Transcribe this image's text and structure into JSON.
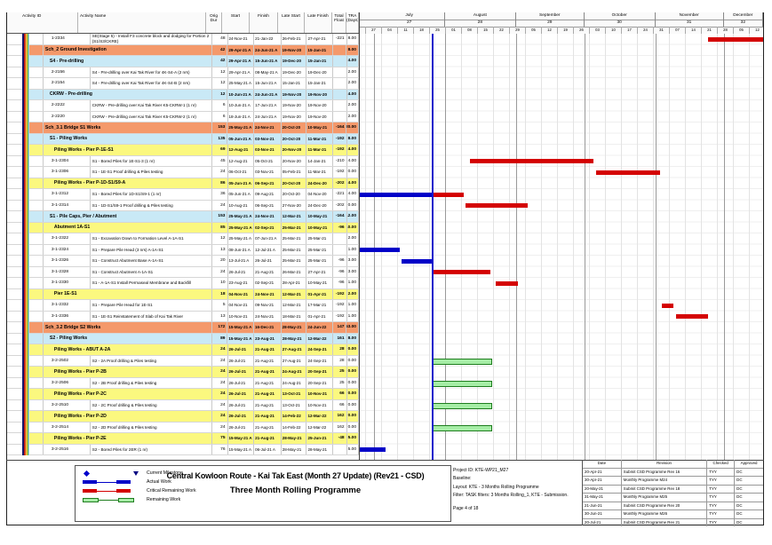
{
  "colors": {
    "band_level1": "#F4996B",
    "band_level2": "#C9E9F6",
    "band_level3": "#FBF87F",
    "actual_bar": "#0000C8",
    "critical_bar": "#D40000",
    "remaining_fill": "#A6EDA6",
    "remaining_border": "#1E7D1E",
    "data_date_line": "#1A1ACC"
  },
  "table": {
    "columns": [
      "Activity ID",
      "Activity Name",
      "Orig Dur",
      "Start",
      "Finish",
      "Late Start",
      "Late Finish",
      "Total Float",
      "TRA (Days)"
    ]
  },
  "timescale": {
    "data_date": "26-Jul-21",
    "months": [
      {
        "label": "July",
        "number": "27",
        "start": "01-Jul-21",
        "end": "01-Aug-21"
      },
      {
        "label": "August",
        "number": "28",
        "start": "01-Aug-21",
        "end": "01-Sep-21"
      },
      {
        "label": "September",
        "number": "29",
        "start": "01-Sep-21",
        "end": "01-Oct-21"
      },
      {
        "label": "October",
        "number": "30",
        "start": "01-Oct-21",
        "end": "01-Nov-21"
      },
      {
        "label": "November",
        "number": "31",
        "start": "01-Nov-21",
        "end": "01-Dec-21"
      },
      {
        "label": "December",
        "number": "32",
        "start": "01-Dec-21",
        "end": "20-Dec-21"
      }
    ],
    "weeks": [
      {
        "label": "27",
        "date": "27-Jun-21"
      },
      {
        "label": "04",
        "date": "04-Jul-21"
      },
      {
        "label": "11",
        "date": "11-Jul-21"
      },
      {
        "label": "18",
        "date": "18-Jul-21"
      },
      {
        "label": "25",
        "date": "25-Jul-21"
      },
      {
        "label": "01",
        "date": "01-Aug-21"
      },
      {
        "label": "08",
        "date": "08-Aug-21"
      },
      {
        "label": "15",
        "date": "15-Aug-21"
      },
      {
        "label": "22",
        "date": "22-Aug-21"
      },
      {
        "label": "29",
        "date": "29-Aug-21"
      },
      {
        "label": "05",
        "date": "05-Sep-21"
      },
      {
        "label": "12",
        "date": "12-Sep-21"
      },
      {
        "label": "19",
        "date": "19-Sep-21"
      },
      {
        "label": "26",
        "date": "26-Sep-21"
      },
      {
        "label": "03",
        "date": "03-Oct-21"
      },
      {
        "label": "10",
        "date": "10-Oct-21"
      },
      {
        "label": "17",
        "date": "17-Oct-21"
      },
      {
        "label": "24",
        "date": "24-Oct-21"
      },
      {
        "label": "31",
        "date": "31-Oct-21"
      },
      {
        "label": "07",
        "date": "07-Nov-21"
      },
      {
        "label": "14",
        "date": "14-Nov-21"
      },
      {
        "label": "21",
        "date": "21-Nov-21"
      },
      {
        "label": "28",
        "date": "28-Nov-21"
      },
      {
        "label": "05",
        "date": "05-Dec-21"
      },
      {
        "label": "12",
        "date": "12-Dec-21"
      }
    ]
  },
  "rows": [
    {
      "level": "t",
      "id": "1-2334",
      "name": "SE(Stage 5) - Install F3 concrete block and dodging for Portion 2 (S1/S3/CKRE)",
      "od": "48",
      "start": "24-Nov-21",
      "finish": "21-Jan-22",
      "ls": "26-Feb-21",
      "lf": "27-Apr-21",
      "tf": "-221",
      "tra": "8.00",
      "bars": [
        {
          "k": "c",
          "s": "24-Nov-21",
          "e": "20-Dec-21"
        }
      ]
    },
    {
      "level": "b1",
      "id": "",
      "name": "Sch_2 Ground Investigation",
      "od": "42",
      "start": "29-Apr-21 A",
      "finish": "24-Jun-21 A",
      "ls": "19-Nov-20",
      "lf": "15-Jan-21",
      "tf": "",
      "tra": "8.00",
      "bars": []
    },
    {
      "level": "b2",
      "id": "",
      "name": "S4 - Pre-drilling",
      "od": "42",
      "start": "29-Apr-21 A",
      "finish": "15-Jun-21 A",
      "ls": "19-Dec-20",
      "lf": "15-Jan-21",
      "tf": "",
      "tra": "4.00",
      "bars": []
    },
    {
      "level": "t",
      "id": "2-2156",
      "name": "S4 - Pre-drilling over Kai Tak River for 4K-S4-A (2 nrs)",
      "od": "12",
      "start": "29-Apr-21 A",
      "finish": "08-May-21 A",
      "ls": "19-Dec-20",
      "lf": "19-Dec-20",
      "tf": "",
      "tra": "2.00",
      "bars": []
    },
    {
      "level": "t",
      "id": "2-2154",
      "name": "S4 - Pre-drilling over Kai Tak River for 4K-S4-B (2 nrs)",
      "od": "12",
      "start": "25-May-21 A",
      "finish": "15-Jun-21 A",
      "ls": "15-Jan-21",
      "lf": "15-Jan-21",
      "tf": "",
      "tra": "2.00",
      "bars": []
    },
    {
      "level": "b2",
      "id": "",
      "name": "CKRW - Pre-drilling",
      "od": "12",
      "start": "10-Jun-21 A",
      "finish": "24-Jun-21 A",
      "ls": "19-Nov-20",
      "lf": "19-Nov-20",
      "tf": "",
      "tra": "4.00",
      "bars": []
    },
    {
      "level": "t",
      "id": "2-2222",
      "name": "CKRW - Pre-drilling over Kai Tak River K5-CKRW-1 (1 nr)",
      "od": "6",
      "start": "10-Jun-21 A",
      "finish": "17-Jun-21 A",
      "ls": "19-Nov-20",
      "lf": "19-Nov-20",
      "tf": "",
      "tra": "2.00",
      "bars": []
    },
    {
      "level": "t",
      "id": "2-2220",
      "name": "CKRW - Pre-drilling over Kai Tak River K5-CKRW-2 (1 nr)",
      "od": "6",
      "start": "18-Jun-21 A",
      "finish": "24-Jun-21 A",
      "ls": "19-Nov-20",
      "lf": "19-Nov-20",
      "tf": "",
      "tra": "2.00",
      "bars": []
    },
    {
      "level": "b1",
      "id": "",
      "name": "Sch_3.1 Bridge S1 Works",
      "od": "153",
      "start": "25-May-21 A",
      "finish": "24-Nov-21",
      "ls": "20-Oct-20",
      "lf": "10-May-21",
      "tf": "-164",
      "tra": "20.00",
      "bars": []
    },
    {
      "level": "b2",
      "id": "",
      "name": "S1 - Piling Works",
      "od": "135",
      "start": "05-Jun-21 A",
      "finish": "03-Nov-21",
      "ls": "20-Oct-20",
      "lf": "11-Mar-21",
      "tf": "-192",
      "tra": "8.00",
      "bars": []
    },
    {
      "level": "b3",
      "id": "",
      "name": "Piling Works - Pier P-1E-S1",
      "od": "69",
      "start": "12-Aug-21",
      "finish": "03-Nov-21",
      "ls": "20-Nov-20",
      "lf": "11-Mar-21",
      "tf": "-192",
      "tra": "4.00",
      "bars": []
    },
    {
      "level": "t",
      "id": "3-1-2304",
      "name": "S1 - Bored Piles for 1E-S1-3 (1 nr)",
      "od": "45",
      "start": "12-Aug-21",
      "finish": "05-Oct-21",
      "ls": "20-Nov-20",
      "lf": "14-Jan-21",
      "tf": "-210",
      "tra": "4.00",
      "bars": [
        {
          "k": "c",
          "s": "12-Aug-21",
          "e": "05-Oct-21"
        }
      ]
    },
    {
      "level": "t",
      "id": "3-1-2306",
      "name": "S1 - 1E-S1 Proof drilling & Piles testing",
      "od": "24",
      "start": "06-Oct-21",
      "finish": "03-Nov-21",
      "ls": "05-Feb-21",
      "lf": "11-Mar-21",
      "tf": "-192",
      "tra": "0.00",
      "bars": [
        {
          "k": "c",
          "s": "06-Oct-21",
          "e": "03-Nov-21"
        }
      ]
    },
    {
      "level": "b3",
      "id": "",
      "name": "Piling Works - Pier P-1D-S1/S9-A",
      "od": "86",
      "start": "05-Jun-21 A",
      "finish": "06-Sep-21",
      "ls": "20-Oct-20",
      "lf": "24-Dec-20",
      "tf": "-202",
      "tra": "4.00",
      "bars": []
    },
    {
      "level": "t",
      "id": "3-1-2312",
      "name": "S1 - Bored Piles for 1D-S1/S9-1 (1 nr)",
      "od": "36",
      "start": "05-Jun-21 A",
      "finish": "09-Aug-21",
      "ls": "20-Oct-20",
      "lf": "04-Nov-20",
      "tf": "-221",
      "tra": "4.00",
      "bars": [
        {
          "k": "a",
          "s": "05-Jun-21",
          "e": "26-Jul-21"
        },
        {
          "k": "c",
          "s": "26-Jul-21",
          "e": "09-Aug-21"
        }
      ]
    },
    {
      "level": "t",
      "id": "3-1-2314",
      "name": "S1 - 1D-S1/S9-1 Proof drilling & Piles testing",
      "od": "24",
      "start": "10-Aug-21",
      "finish": "06-Sep-21",
      "ls": "27-Nov-20",
      "lf": "24-Dec-20",
      "tf": "-202",
      "tra": "0.00",
      "bars": [
        {
          "k": "c",
          "s": "10-Aug-21",
          "e": "06-Sep-21"
        }
      ]
    },
    {
      "level": "b2",
      "id": "",
      "name": "S1 - Pile Caps, Pier / Abutment",
      "od": "153",
      "start": "25-May-21 A",
      "finish": "24-Nov-21",
      "ls": "12-Mar-21",
      "lf": "10-May-21",
      "tf": "-164",
      "tra": "12.00",
      "bars": []
    },
    {
      "level": "b3",
      "id": "",
      "name": "Abutment 1A-S1",
      "od": "85",
      "start": "25-May-21 A",
      "finish": "02-Sep-21",
      "ls": "25-Mar-21",
      "lf": "10-May-21",
      "tf": "-96",
      "tra": "10.00",
      "bars": []
    },
    {
      "level": "t",
      "id": "3-1-2322",
      "name": "S1 - Excavation Down to Formation Level A-1A-S1",
      "od": "12",
      "start": "25-May-21 A",
      "finish": "07-Jun-21 A",
      "ls": "25-Mar-21",
      "lf": "25-Mar-21",
      "tf": "",
      "tra": "2.00",
      "bars": []
    },
    {
      "level": "t",
      "id": "3-1-2324",
      "name": "S1 - Prepare Pile Head (3 nrs) A-1A-S1",
      "od": "13",
      "start": "08-Jun-21 A",
      "finish": "12-Jul-21 A",
      "ls": "25-Mar-21",
      "lf": "25-Mar-21",
      "tf": "",
      "tra": "1.00",
      "bars": [
        {
          "k": "a",
          "s": "08-Jun-21",
          "e": "12-Jul-21"
        }
      ]
    },
    {
      "level": "t",
      "id": "3-1-2326",
      "name": "S1 - Construct Abutment Base A-1A-S1",
      "od": "20",
      "start": "13-Jul-21 A",
      "finish": "26-Jul-21",
      "ls": "25-Mar-21",
      "lf": "25-Mar-21",
      "tf": "-96",
      "tra": "3.00",
      "bars": [
        {
          "k": "a",
          "s": "13-Jul-21",
          "e": "26-Jul-21"
        },
        {
          "k": "c",
          "s": "26-Jul-21",
          "e": "27-Jul-21"
        }
      ]
    },
    {
      "level": "t",
      "id": "3-1-2328",
      "name": "S1 - Construct Abutment A-1A-S1",
      "od": "24",
      "start": "26-Jul-21",
      "finish": "21-Aug-21",
      "ls": "26-Mar-21",
      "lf": "27-Apr-21",
      "tf": "-96",
      "tra": "3.00",
      "bars": [
        {
          "k": "c",
          "s": "26-Jul-21",
          "e": "21-Aug-21"
        }
      ]
    },
    {
      "level": "t",
      "id": "3-1-2330",
      "name": "S1 - A-1A-S1 Install Permaseal Membrane and Backfill",
      "od": "10",
      "start": "23-Aug-21",
      "finish": "02-Sep-21",
      "ls": "28-Apr-21",
      "lf": "10-May-21",
      "tf": "-96",
      "tra": "1.00",
      "bars": [
        {
          "k": "c",
          "s": "23-Aug-21",
          "e": "02-Sep-21"
        }
      ]
    },
    {
      "level": "b3",
      "id": "",
      "name": "Pier 1E-S1",
      "od": "18",
      "start": "04-Nov-21",
      "finish": "24-Nov-21",
      "ls": "12-Mar-21",
      "lf": "01-Apr-21",
      "tf": "-192",
      "tra": "2.00",
      "bars": []
    },
    {
      "level": "t",
      "id": "3-1-2332",
      "name": "S1 - Prepare Pile Head for 1E-S1",
      "od": "5",
      "start": "04-Nov-21",
      "finish": "09-Nov-21",
      "ls": "12-Mar-21",
      "lf": "17-Mar-21",
      "tf": "-192",
      "tra": "1.00",
      "bars": [
        {
          "k": "c",
          "s": "04-Nov-21",
          "e": "09-Nov-21"
        }
      ]
    },
    {
      "level": "t",
      "id": "3-1-2336",
      "name": "S1 - 1E-S1 Reinstatement of Slab of Kai Tak River",
      "od": "13",
      "start": "10-Nov-21",
      "finish": "24-Nov-21",
      "ls": "18-Mar-21",
      "lf": "01-Apr-21",
      "tf": "-192",
      "tra": "1.00",
      "bars": [
        {
          "k": "c",
          "s": "10-Nov-21",
          "e": "24-Nov-21"
        }
      ]
    },
    {
      "level": "b1",
      "id": "",
      "name": "Sch_3.2 Bridge S2 Works",
      "od": "172",
      "start": "15-May-21 A",
      "finish": "16-Dec-21",
      "ls": "28-May-21",
      "lf": "24-Jun-22",
      "tf": "147",
      "tra": "53.00",
      "bars": []
    },
    {
      "level": "b2",
      "id": "",
      "name": "S2 - Piling Works",
      "od": "89",
      "start": "15-May-21 A",
      "finish": "23-Aug-21",
      "ls": "28-May-21",
      "lf": "12-Mar-22",
      "tf": "161",
      "tra": "8.00",
      "bars": []
    },
    {
      "level": "b3",
      "id": "",
      "name": "Piling Works - ABUT A-2A",
      "od": "24",
      "start": "26-Jul-21",
      "finish": "21-Aug-21",
      "ls": "27-Aug-21",
      "lf": "24-Sep-21",
      "tf": "28",
      "tra": "0.00",
      "bars": []
    },
    {
      "level": "t",
      "id": "3-2-2502",
      "name": "S2 - 2A Proof drilling & Piles testing",
      "od": "24",
      "start": "26-Jul-21",
      "finish": "21-Aug-21",
      "ls": "27-Aug-21",
      "lf": "24-Sep-21",
      "tf": "28",
      "tra": "0.00",
      "bars": [
        {
          "k": "r",
          "s": "26-Jul-21",
          "e": "21-Aug-21"
        }
      ]
    },
    {
      "level": "b3",
      "id": "",
      "name": "Piling Works - Pier P-2B",
      "od": "24",
      "start": "26-Jul-21",
      "finish": "21-Aug-21",
      "ls": "24-Aug-21",
      "lf": "20-Sep-21",
      "tf": "25",
      "tra": "0.00",
      "bars": []
    },
    {
      "level": "t",
      "id": "3-2-2506",
      "name": "S2 - 2B Proof drilling & Piles testing",
      "od": "24",
      "start": "26-Jul-21",
      "finish": "21-Aug-21",
      "ls": "24-Aug-21",
      "lf": "20-Sep-21",
      "tf": "25",
      "tra": "0.00",
      "bars": [
        {
          "k": "r",
          "s": "26-Jul-21",
          "e": "21-Aug-21"
        }
      ]
    },
    {
      "level": "b3",
      "id": "",
      "name": "Piling Works - Pier P-2C",
      "od": "24",
      "start": "26-Jul-21",
      "finish": "21-Aug-21",
      "ls": "13-Oct-21",
      "lf": "10-Nov-21",
      "tf": "66",
      "tra": "0.00",
      "bars": []
    },
    {
      "level": "t",
      "id": "3-2-2510",
      "name": "S2 - 2C Proof drilling & Piles testing",
      "od": "24",
      "start": "26-Jul-21",
      "finish": "21-Aug-21",
      "ls": "13-Oct-21",
      "lf": "10-Nov-21",
      "tf": "66",
      "tra": "0.00",
      "bars": [
        {
          "k": "r",
          "s": "26-Jul-21",
          "e": "21-Aug-21"
        }
      ]
    },
    {
      "level": "b3",
      "id": "",
      "name": "Piling Works - Pier P-2D",
      "od": "24",
      "start": "26-Jul-21",
      "finish": "21-Aug-21",
      "ls": "14-Feb-22",
      "lf": "12-Mar-22",
      "tf": "162",
      "tra": "0.00",
      "bars": []
    },
    {
      "level": "t",
      "id": "3-2-2514",
      "name": "S2 - 2D Proof drilling & Piles testing",
      "od": "24",
      "start": "26-Jul-21",
      "finish": "21-Aug-21",
      "ls": "14-Feb-22",
      "lf": "12-Mar-22",
      "tf": "162",
      "tra": "0.00",
      "bars": [
        {
          "k": "r",
          "s": "26-Jul-21",
          "e": "21-Aug-21"
        }
      ]
    },
    {
      "level": "b3",
      "id": "",
      "name": "Piling Works - Pier P-2E",
      "od": "75",
      "start": "15-May-21 A",
      "finish": "21-Aug-21",
      "ls": "28-May-21",
      "lf": "25-Jun-21",
      "tf": "-48",
      "tra": "5.00",
      "bars": []
    },
    {
      "level": "t",
      "id": "3-2-2516",
      "name": "S2 - Bored Piles for 2ER (1 nr)",
      "od": "76",
      "start": "15-May-21 A",
      "finish": "06-Jul-21 A",
      "ls": "28-May-21",
      "lf": "28-May-21",
      "tf": "",
      "tra": "5.00",
      "bars": [
        {
          "k": "a",
          "s": "15-May-21",
          "e": "06-Jul-21"
        }
      ]
    }
  ],
  "footer": {
    "legend": [
      {
        "symbol": "milestone",
        "label": "Current Milestone"
      },
      {
        "symbol": "actual",
        "label": "Actual Work"
      },
      {
        "symbol": "critical",
        "label": "Critical Remaining Work"
      },
      {
        "symbol": "remaining",
        "label": "Remaining Work"
      }
    ],
    "title": {
      "line1": "Central Kowloon Route - Kai Tak East (Month 27 Update) (Rev21 - CSD)",
      "line2": "Three Month Rolling Programme"
    },
    "project_info": [
      "Project ID: KTE-WP21_M27",
      "Baseline:",
      "Layout: KTE - 3 Months Rolling Programme",
      "Filter: TASK filters: 3 Months Rolling_1, KTE - Submission."
    ],
    "page_label": "Page 4 of 18",
    "revision_table": {
      "headers": [
        "Date",
        "Revision",
        "Checked",
        "Approved"
      ],
      "rows": [
        [
          "20-Apr-21",
          "Submit CSD Programme Rev 16",
          "TYY",
          "DC"
        ],
        [
          "30-Apr-21",
          "Monthly Programme M24",
          "TYY",
          "DC"
        ],
        [
          "20-May-21",
          "Submit CSD Programme Rev 18",
          "TYY",
          "DC"
        ],
        [
          "31-May-21",
          "Monthly Programme M25",
          "TYY",
          "DC"
        ],
        [
          "21-Jun-21",
          "Submit CSD Programme Rev 20",
          "TYY",
          "DC"
        ],
        [
          "30-Jun-21",
          "Monthly Programme M26",
          "TYY",
          "DC"
        ],
        [
          "20-Jul-21",
          "Submit CSD Programme Rev 21",
          "TYY",
          "DC"
        ]
      ]
    }
  }
}
